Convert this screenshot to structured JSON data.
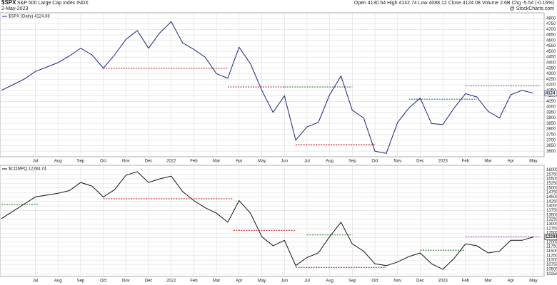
{
  "header": {
    "symbol": "$SPX",
    "name": "S&P 500 Large Cap Index INDX",
    "date": "2-May-2023",
    "quote": "Open 4130.54 High 4142.74 Low 4088.12 Close 4124.08 Volume 2.6B Chg -5.54 (-0.16%)",
    "source": "@ StockCharts.com"
  },
  "chart_data": [
    {
      "type": "line",
      "legend": "$SPX (Daily) 4124.08",
      "color": "#1a237e",
      "last_label": "4124",
      "categories": [
        null,
        null,
        null,
        "Jul",
        null,
        "Aug",
        null,
        "Sep",
        null,
        "Oct",
        null,
        "Nov",
        null,
        "Dec",
        null,
        "2022",
        null,
        "Feb",
        null,
        "Mar",
        null,
        "Apr",
        null,
        "May",
        null,
        "Jun",
        null,
        "Jul",
        null,
        "Aug",
        null,
        "Sep",
        null,
        "Oct",
        null,
        "Nov",
        null,
        "Dec",
        null,
        "2023",
        null,
        "Feb",
        null,
        "Mar",
        null,
        "Apr",
        null,
        "May"
      ],
      "values": [
        4150,
        4200,
        4250,
        4320,
        4360,
        4400,
        4460,
        4530,
        4470,
        4350,
        4470,
        4610,
        4690,
        4530,
        4670,
        4770,
        4580,
        4520,
        4450,
        4300,
        4260,
        4540,
        4390,
        4150,
        3950,
        4100,
        3700,
        3820,
        3860,
        4110,
        4280,
        3970,
        3900,
        3600,
        3580,
        3860,
        3990,
        4080,
        3850,
        3840,
        3990,
        4120,
        4090,
        3960,
        3900,
        4110,
        4150,
        4124
      ],
      "ylim": [
        3550,
        4850
      ],
      "yticks": [
        3600,
        3650,
        3700,
        3750,
        3800,
        3850,
        3900,
        3950,
        4000,
        4050,
        4100,
        4150,
        4200,
        4250,
        4300,
        4350,
        4400,
        4450,
        4500,
        4550,
        4600,
        4650,
        4700,
        4750,
        4800
      ],
      "grid": true,
      "levels": [
        {
          "value": 4350,
          "start": 9,
          "end": 20,
          "color": "#c62828"
        },
        {
          "value": 4180,
          "start": 20,
          "end": 25,
          "color": "#c62828"
        },
        {
          "value": 4180,
          "start": 25,
          "end": 31,
          "color": "#2e7d32"
        },
        {
          "value": 3660,
          "start": 26,
          "end": 33,
          "color": "#c62828"
        },
        {
          "value": 4070,
          "start": 36,
          "end": 42,
          "color": "#2e7d32"
        },
        {
          "value": 4190,
          "start": 41,
          "end": 47.6,
          "color": "#ab47bc"
        }
      ]
    },
    {
      "type": "line",
      "legend": "$COMPQ 12284.74",
      "color": "#111111",
      "last_label": "12284",
      "categories": [
        null,
        null,
        null,
        "Jul",
        null,
        "Aug",
        null,
        "Sep",
        null,
        "Oct",
        null,
        "Nov",
        null,
        "Dec",
        null,
        "2022",
        null,
        "Feb",
        null,
        "Mar",
        null,
        "Apr",
        null,
        "May",
        null,
        "Jun",
        null,
        "Jul",
        null,
        "Aug",
        null,
        "Sep",
        null,
        "Oct",
        null,
        "Nov",
        null,
        "Dec",
        null,
        "2023",
        null,
        "Feb",
        null,
        "Mar",
        null,
        "Apr",
        null,
        "May"
      ],
      "values": [
        13300,
        13700,
        14100,
        14500,
        14600,
        14700,
        14850,
        15300,
        15100,
        14500,
        14900,
        15700,
        15900,
        15300,
        15500,
        15650,
        14800,
        14300,
        13900,
        13600,
        13100,
        14300,
        13600,
        12300,
        11800,
        12100,
        10700,
        11150,
        11400,
        12300,
        13100,
        11900,
        11500,
        10800,
        10700,
        10900,
        11200,
        11400,
        10800,
        10500,
        11100,
        11900,
        11800,
        11400,
        11500,
        12100,
        12100,
        12285
      ],
      "ylim": [
        10100,
        16250
      ],
      "yticks": [
        10250,
        10500,
        10750,
        11000,
        11250,
        11500,
        11750,
        12000,
        12250,
        12500,
        12750,
        13000,
        13250,
        13500,
        13750,
        14000,
        14250,
        14500,
        14750,
        15000,
        15250,
        15500,
        15750,
        16000
      ],
      "grid": true,
      "levels": [
        {
          "value": 14100,
          "start": 0,
          "end": 3.3,
          "color": "#2e7d32"
        },
        {
          "value": 14400,
          "start": 9,
          "end": 20.5,
          "color": "#c62828"
        },
        {
          "value": 12650,
          "start": 20.5,
          "end": 26,
          "color": "#c62828"
        },
        {
          "value": 12400,
          "start": 27,
          "end": 31,
          "color": "#2e7d32"
        },
        {
          "value": 10600,
          "start": 26,
          "end": 34,
          "color": "#c62828"
        },
        {
          "value": 11550,
          "start": 37,
          "end": 41,
          "color": "#2e7d32"
        },
        {
          "value": 12300,
          "start": 41,
          "end": 47.6,
          "color": "#ab47bc"
        }
      ]
    }
  ]
}
